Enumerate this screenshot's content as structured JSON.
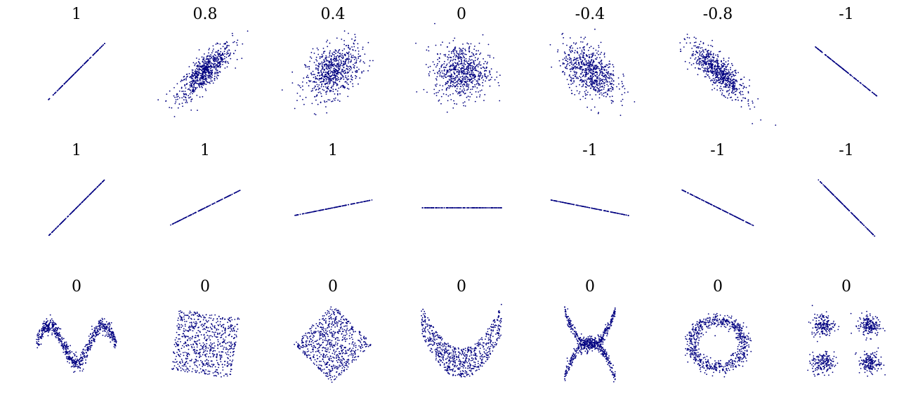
{
  "point_color": "#000080",
  "chart_data": {
    "type": "scatter",
    "rows": [
      {
        "panels": [
          {
            "label": "1",
            "kind": "linear",
            "slope": 1.0,
            "noise": 0
          },
          {
            "label": "0.8",
            "kind": "gaussian",
            "r": 0.8
          },
          {
            "label": "0.4",
            "kind": "gaussian",
            "r": 0.4
          },
          {
            "label": "0",
            "kind": "gaussian",
            "r": 0.0
          },
          {
            "label": "-0.4",
            "kind": "gaussian",
            "r": -0.4
          },
          {
            "label": "-0.8",
            "kind": "gaussian",
            "r": -0.8
          },
          {
            "label": "-1",
            "kind": "linear",
            "slope": -0.8,
            "noise": 0
          }
        ]
      },
      {
        "panels": [
          {
            "label": "1",
            "kind": "linear",
            "slope": 1.0
          },
          {
            "label": "1",
            "kind": "linear",
            "slope": 0.5
          },
          {
            "label": "1",
            "kind": "linear",
            "slope": 0.2
          },
          {
            "label": "",
            "kind": "linear",
            "slope": 0.0
          },
          {
            "label": "-1",
            "kind": "linear",
            "slope": -0.2
          },
          {
            "label": "-1",
            "kind": "linear",
            "slope": -0.5
          },
          {
            "label": "-1",
            "kind": "linear",
            "slope": -1.0
          }
        ]
      },
      {
        "panels": [
          {
            "label": "0",
            "kind": "wave"
          },
          {
            "label": "0",
            "kind": "rotated-square",
            "angle": -8
          },
          {
            "label": "0",
            "kind": "diamond"
          },
          {
            "label": "0",
            "kind": "parabola"
          },
          {
            "label": "0",
            "kind": "cross-parabolas"
          },
          {
            "label": "0",
            "kind": "ring"
          },
          {
            "label": "0",
            "kind": "four-clusters"
          }
        ]
      }
    ]
  }
}
